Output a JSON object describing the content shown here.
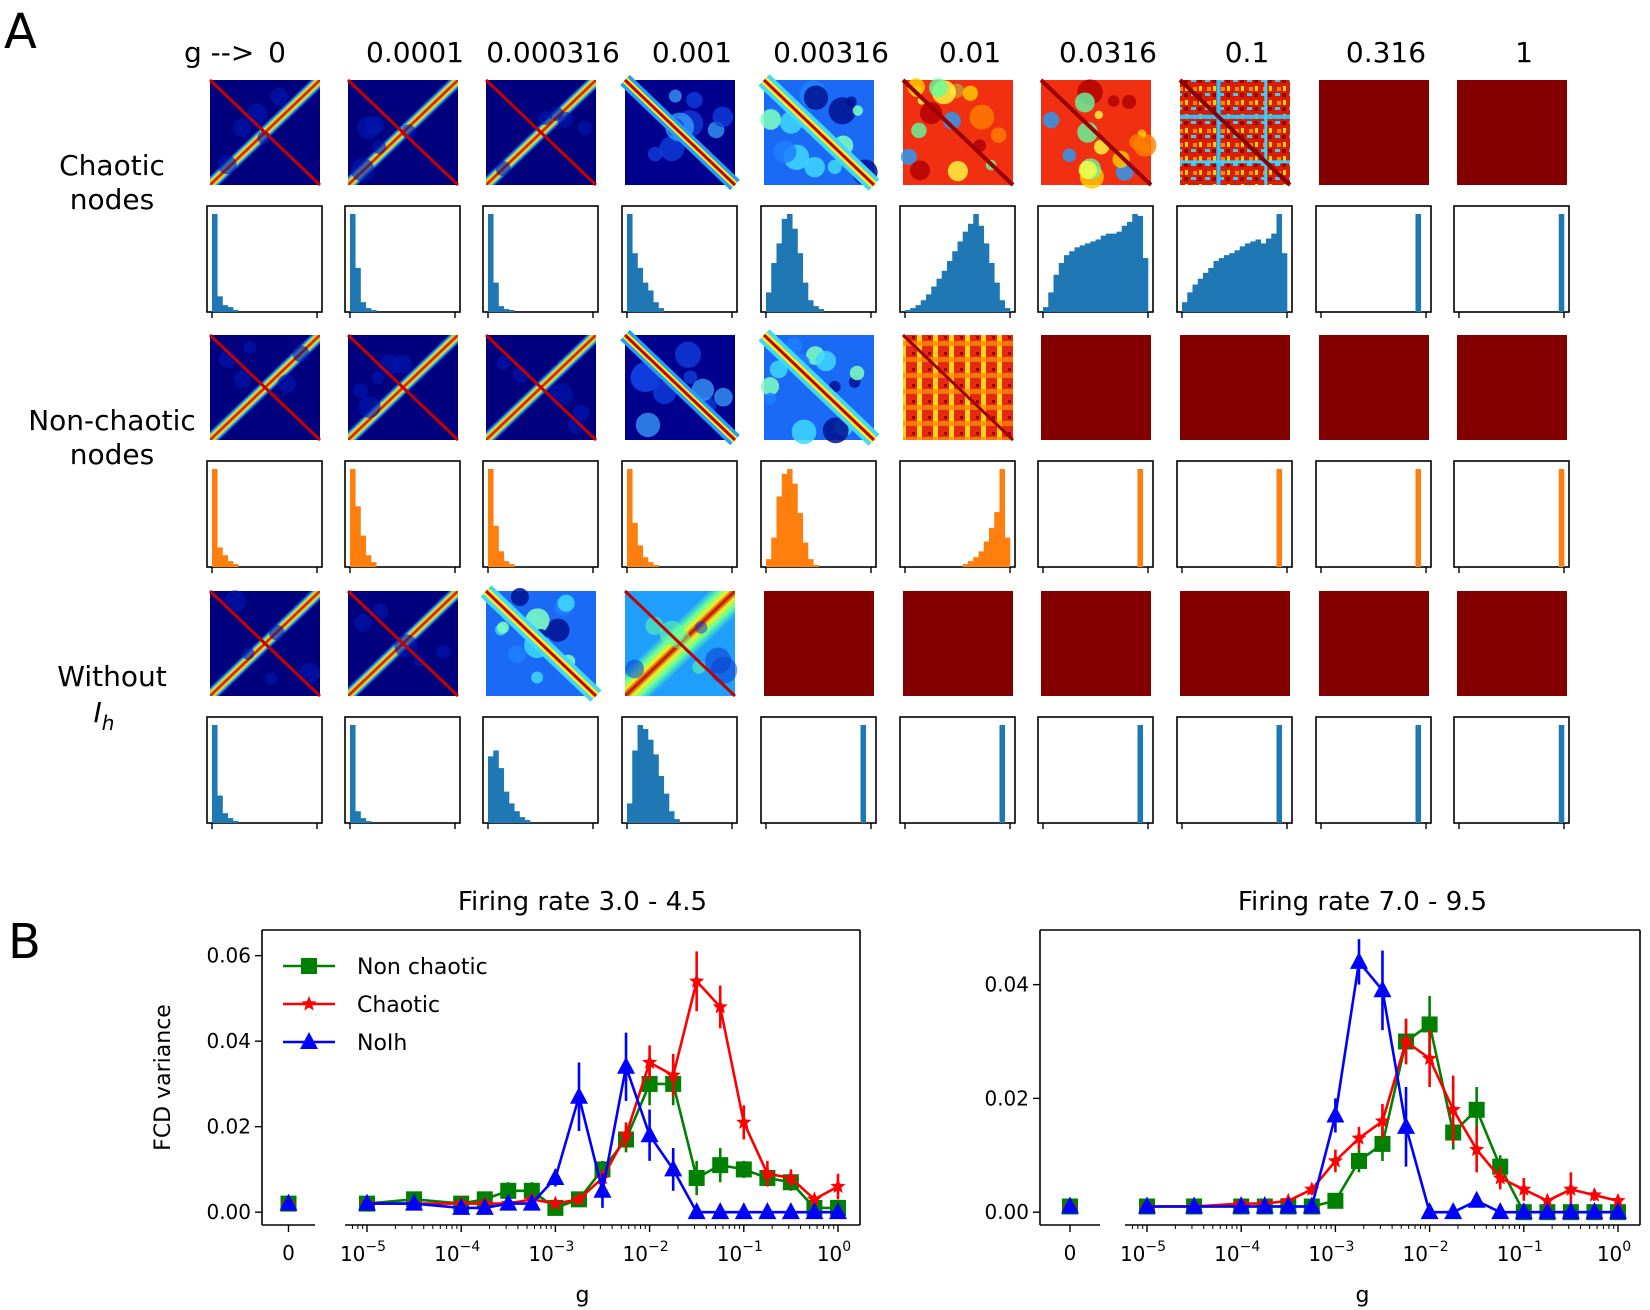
{
  "panelA": {
    "letter": "A",
    "g_prefix": "g -->",
    "g_values": [
      "0",
      "0.0001",
      "0.000316",
      "0.001",
      "0.00316",
      "0.01",
      "0.0316",
      "0.1",
      "0.316",
      "1"
    ],
    "rows": [
      {
        "label_lines": [
          "Chaotic",
          "nodes"
        ],
        "hist_color": "#1f77b4",
        "states": [
          "diag-sharp",
          "diag-sharp",
          "diag-sharp",
          "diag-blobs",
          "diag-cyan",
          "mixed-red",
          "mixed-red",
          "blocky",
          "uniform-red",
          "uniform-red"
        ],
        "histograms": [
          [
            1.0,
            0.16,
            0.07,
            0.05,
            0.02,
            0,
            0,
            0,
            0,
            0,
            0,
            0,
            0,
            0,
            0,
            0,
            0,
            0,
            0,
            0
          ],
          [
            1.0,
            0.45,
            0.1,
            0.04,
            0.02,
            0,
            0,
            0,
            0,
            0,
            0,
            0,
            0,
            0,
            0,
            0,
            0,
            0,
            0,
            0
          ],
          [
            1.0,
            0.3,
            0.06,
            0.03,
            0.02,
            0,
            0,
            0,
            0,
            0,
            0,
            0,
            0,
            0,
            0,
            0,
            0,
            0,
            0,
            0
          ],
          [
            1.0,
            0.6,
            0.45,
            0.3,
            0.22,
            0.1,
            0.04,
            0,
            0,
            0,
            0,
            0,
            0,
            0,
            0,
            0,
            0,
            0,
            0,
            0
          ],
          [
            0.2,
            0.5,
            0.7,
            0.95,
            1.0,
            0.85,
            0.6,
            0.3,
            0.12,
            0.06,
            0.03,
            0,
            0,
            0,
            0,
            0,
            0,
            0,
            0,
            0
          ],
          [
            0.02,
            0.04,
            0.07,
            0.12,
            0.18,
            0.26,
            0.34,
            0.42,
            0.52,
            0.62,
            0.72,
            0.82,
            0.9,
            1.0,
            0.88,
            0.7,
            0.5,
            0.3,
            0.12,
            0.04
          ],
          [
            0.05,
            0.2,
            0.38,
            0.5,
            0.58,
            0.62,
            0.66,
            0.68,
            0.7,
            0.72,
            0.74,
            0.78,
            0.8,
            0.8,
            0.82,
            0.88,
            0.92,
            1.0,
            0.98,
            0.55
          ],
          [
            0.1,
            0.2,
            0.28,
            0.34,
            0.4,
            0.45,
            0.52,
            0.55,
            0.58,
            0.6,
            0.63,
            0.67,
            0.7,
            0.72,
            0.74,
            0.7,
            0.75,
            0.8,
            1.0,
            0.6
          ],
          [
            0,
            0,
            0,
            0,
            0,
            0,
            0,
            0,
            0,
            0,
            0,
            0,
            0,
            0,
            0,
            0,
            0,
            0,
            1.0,
            0
          ],
          [
            0,
            0,
            0,
            0,
            0,
            0,
            0,
            0,
            0,
            0,
            0,
            0,
            0,
            0,
            0,
            0,
            0,
            0,
            0,
            1.0
          ]
        ]
      },
      {
        "label_lines": [
          "Non-chaotic",
          "nodes"
        ],
        "hist_color": "#ff7f0e",
        "states": [
          "diag-sharp",
          "diag-sharp",
          "diag-sharp",
          "diag-blobs",
          "diag-cyan",
          "grid-red",
          "uniform-red",
          "uniform-red",
          "uniform-red",
          "uniform-red"
        ],
        "histograms": [
          [
            1.0,
            0.2,
            0.12,
            0.06,
            0.03,
            0,
            0,
            0,
            0,
            0,
            0,
            0,
            0,
            0,
            0,
            0,
            0,
            0,
            0,
            0
          ],
          [
            1.0,
            0.62,
            0.32,
            0.12,
            0.05,
            0,
            0,
            0,
            0,
            0,
            0,
            0,
            0,
            0,
            0,
            0,
            0,
            0,
            0,
            0
          ],
          [
            1.0,
            0.42,
            0.16,
            0.06,
            0.03,
            0,
            0,
            0,
            0,
            0,
            0,
            0,
            0,
            0,
            0,
            0,
            0,
            0,
            0,
            0
          ],
          [
            1.0,
            0.45,
            0.22,
            0.1,
            0.05,
            0.02,
            0,
            0,
            0,
            0,
            0,
            0,
            0,
            0,
            0,
            0,
            0,
            0,
            0,
            0
          ],
          [
            0.08,
            0.3,
            0.72,
            0.95,
            1.0,
            0.85,
            0.55,
            0.25,
            0.08,
            0.02,
            0,
            0,
            0,
            0,
            0,
            0,
            0,
            0,
            0,
            0
          ],
          [
            0,
            0,
            0,
            0,
            0,
            0,
            0,
            0,
            0,
            0,
            0,
            0.03,
            0.06,
            0.1,
            0.16,
            0.26,
            0.4,
            0.56,
            1.0,
            0.3
          ],
          [
            0,
            0,
            0,
            0,
            0,
            0,
            0,
            0,
            0,
            0,
            0,
            0,
            0,
            0,
            0,
            0,
            0,
            0,
            1.0,
            0
          ],
          [
            0,
            0,
            0,
            0,
            0,
            0,
            0,
            0,
            0,
            0,
            0,
            0,
            0,
            0,
            0,
            0,
            0,
            0,
            1.0,
            0
          ],
          [
            0,
            0,
            0,
            0,
            0,
            0,
            0,
            0,
            0,
            0,
            0,
            0,
            0,
            0,
            0,
            0,
            0,
            0,
            1.0,
            0
          ],
          [
            0,
            0,
            0,
            0,
            0,
            0,
            0,
            0,
            0,
            0,
            0,
            0,
            0,
            0,
            0,
            0,
            0,
            0,
            0,
            1.0
          ]
        ]
      },
      {
        "label_lines": [
          "Without",
          "I",
          "h"
        ],
        "hist_color": "#1f77b4",
        "states": [
          "diag-sharp",
          "diag-sharp",
          "diag-cyan",
          "diag-wide",
          "uniform-red",
          "uniform-red",
          "uniform-red",
          "uniform-red",
          "uniform-red",
          "uniform-red"
        ],
        "histograms": [
          [
            1.0,
            0.28,
            0.1,
            0.05,
            0.02,
            0,
            0,
            0,
            0,
            0,
            0,
            0,
            0,
            0,
            0,
            0,
            0,
            0,
            0,
            0
          ],
          [
            1.0,
            0.12,
            0.05,
            0.02,
            0,
            0,
            0,
            0,
            0,
            0,
            0,
            0,
            0,
            0,
            0,
            0,
            0,
            0,
            0,
            0
          ],
          [
            0.68,
            0.74,
            0.56,
            0.32,
            0.2,
            0.12,
            0.06,
            0.03,
            0,
            0,
            0,
            0,
            0,
            0,
            0,
            0,
            0,
            0,
            0,
            0
          ],
          [
            0.2,
            0.74,
            1.0,
            0.96,
            0.85,
            0.7,
            0.48,
            0.3,
            0.12,
            0.04,
            0,
            0,
            0,
            0,
            0,
            0,
            0,
            0,
            0,
            0
          ],
          [
            0,
            0,
            0,
            0,
            0,
            0,
            0,
            0,
            0,
            0,
            0,
            0,
            0,
            0,
            0,
            0,
            0,
            0,
            1.0,
            0
          ],
          [
            0,
            0,
            0,
            0,
            0,
            0,
            0,
            0,
            0,
            0,
            0,
            0,
            0,
            0,
            0,
            0,
            0,
            0,
            1.0,
            0
          ],
          [
            0,
            0,
            0,
            0,
            0,
            0,
            0,
            0,
            0,
            0,
            0,
            0,
            0,
            0,
            0,
            0,
            0,
            0,
            1.0,
            0
          ],
          [
            0,
            0,
            0,
            0,
            0,
            0,
            0,
            0,
            0,
            0,
            0,
            0,
            0,
            0,
            0,
            0,
            0,
            0,
            1.0,
            0
          ],
          [
            0,
            0,
            0,
            0,
            0,
            0,
            0,
            0,
            0,
            0,
            0,
            0,
            0,
            0,
            0,
            0,
            0,
            0,
            1.0,
            0
          ],
          [
            0,
            0,
            0,
            0,
            0,
            0,
            0,
            0,
            0,
            0,
            0,
            0,
            0,
            0,
            0,
            0,
            0,
            0,
            0,
            1.0
          ]
        ]
      }
    ]
  },
  "panelB": {
    "letter": "B"
  },
  "chart_data": [
    {
      "type": "line",
      "title": "Firing rate 3.0 - 4.5",
      "xlabel": "g",
      "ylabel": "FCD variance",
      "xscale": "log (broken axis with separate g = 0 point)",
      "xlim": [
        1e-05,
        1
      ],
      "ylim": [
        0,
        0.066
      ],
      "ytick_labels": [
        "0.00",
        "0.02",
        "0.04",
        "0.06"
      ],
      "ytick_values": [
        0,
        0.02,
        0.04,
        0.06
      ],
      "zero_tick_label": "0",
      "xtick_labels": [
        {
          "base": "10",
          "exp": "−5"
        },
        {
          "base": "10",
          "exp": "−4"
        },
        {
          "base": "10",
          "exp": "−3"
        },
        {
          "base": "10",
          "exp": "−2"
        },
        {
          "base": "10",
          "exp": "−1"
        },
        {
          "base": "10",
          "exp": "0"
        }
      ],
      "legend_position": "top-left",
      "zero_point": 0.002,
      "x": [
        1e-05,
        3.16e-05,
        0.0001,
        0.000178,
        0.000316,
        0.000562,
        0.001,
        0.00178,
        0.00316,
        0.00562,
        0.01,
        0.0178,
        0.0316,
        0.0562,
        0.1,
        0.178,
        0.316,
        0.562,
        1
      ],
      "series": [
        {
          "name": "Non chaotic",
          "color": "#008000",
          "marker": "square",
          "values": [
            0.002,
            0.003,
            0.002,
            0.003,
            0.005,
            0.005,
            0.001,
            0.003,
            0.01,
            0.017,
            0.03,
            0.03,
            0.008,
            0.011,
            0.01,
            0.008,
            0.007,
            0.001,
            0.001
          ],
          "errors": [
            0.001,
            0.001,
            0.001,
            0.001,
            0.002,
            0.002,
            0.001,
            0.001,
            0.002,
            0.003,
            0.005,
            0.005,
            0.004,
            0.004,
            0.002,
            0.002,
            0.002,
            0.001,
            0.001
          ]
        },
        {
          "name": "Chaotic",
          "color": "#ff0000",
          "marker": "star",
          "values": [
            0.002,
            0.002,
            0.002,
            0.002,
            0.002,
            0.003,
            0.002,
            0.003,
            0.008,
            0.018,
            0.035,
            0.032,
            0.054,
            0.048,
            0.021,
            0.009,
            0.008,
            0.003,
            0.006
          ],
          "errors": [
            0.001,
            0.001,
            0.001,
            0.001,
            0.001,
            0.001,
            0.001,
            0.001,
            0.002,
            0.003,
            0.004,
            0.005,
            0.007,
            0.005,
            0.004,
            0.003,
            0.002,
            0.001,
            0.003
          ]
        },
        {
          "name": "NoIh",
          "color": "#0000ff",
          "marker": "triangle",
          "values": [
            0.002,
            0.002,
            0.001,
            0.001,
            0.002,
            0.002,
            0.008,
            0.027,
            0.005,
            0.034,
            0.018,
            0.01,
            0.0,
            0.0,
            0.0,
            0.0,
            0.0,
            0.0,
            0.0
          ],
          "errors": [
            0.001,
            0.001,
            0.001,
            0.001,
            0.001,
            0.001,
            0.002,
            0.008,
            0.004,
            0.008,
            0.006,
            0.005,
            0.0,
            0.0,
            0.0,
            0.0,
            0.0,
            0.0,
            0.0
          ]
        }
      ]
    },
    {
      "type": "line",
      "title": "Firing rate 7.0 - 9.5",
      "xlabel": "g",
      "ylabel": "",
      "xscale": "log (broken axis with separate g = 0 point)",
      "xlim": [
        1e-05,
        1
      ],
      "ylim": [
        0,
        0.0496
      ],
      "ytick_labels": [
        "0.00",
        "0.02",
        "0.04"
      ],
      "ytick_values": [
        0,
        0.02,
        0.04
      ],
      "zero_tick_label": "0",
      "xtick_labels": [
        {
          "base": "10",
          "exp": "−5"
        },
        {
          "base": "10",
          "exp": "−4"
        },
        {
          "base": "10",
          "exp": "−3"
        },
        {
          "base": "10",
          "exp": "−2"
        },
        {
          "base": "10",
          "exp": "−1"
        },
        {
          "base": "10",
          "exp": "0"
        }
      ],
      "legend_position": "none",
      "zero_point": 0.001,
      "x": [
        1e-05,
        3.16e-05,
        0.0001,
        0.000178,
        0.000316,
        0.000562,
        0.001,
        0.00178,
        0.00316,
        0.00562,
        0.01,
        0.0178,
        0.0316,
        0.0562,
        0.1,
        0.178,
        0.316,
        0.562,
        1
      ],
      "series": [
        {
          "name": "Non chaotic",
          "color": "#008000",
          "marker": "square",
          "values": [
            0.001,
            0.001,
            0.001,
            0.001,
            0.001,
            0.001,
            0.002,
            0.009,
            0.012,
            0.03,
            0.033,
            0.014,
            0.018,
            0.008,
            0.0,
            0.0,
            0.0,
            0.0,
            0.0
          ],
          "errors": [
            0.0005,
            0.0005,
            0.0005,
            0.0005,
            0.0005,
            0.0005,
            0.001,
            0.002,
            0.003,
            0.004,
            0.005,
            0.003,
            0.004,
            0.002,
            0.0,
            0.0,
            0.0,
            0.0,
            0.0
          ]
        },
        {
          "name": "Chaotic",
          "color": "#ff0000",
          "marker": "star",
          "values": [
            0.001,
            0.001,
            0.0015,
            0.0015,
            0.002,
            0.004,
            0.009,
            0.013,
            0.016,
            0.03,
            0.027,
            0.018,
            0.011,
            0.006,
            0.004,
            0.002,
            0.004,
            0.003,
            0.002
          ],
          "errors": [
            0.0005,
            0.0005,
            0.0005,
            0.0005,
            0.0005,
            0.001,
            0.002,
            0.002,
            0.003,
            0.004,
            0.005,
            0.006,
            0.004,
            0.002,
            0.002,
            0.001,
            0.003,
            0.001,
            0.001
          ]
        },
        {
          "name": "NoIh",
          "color": "#0000ff",
          "marker": "triangle",
          "values": [
            0.001,
            0.001,
            0.001,
            0.001,
            0.001,
            0.001,
            0.017,
            0.044,
            0.039,
            0.015,
            0.0,
            0.0,
            0.002,
            0.0,
            0.0,
            0.0,
            0.0,
            0.0,
            0.0
          ],
          "errors": [
            0.0005,
            0.0005,
            0.0005,
            0.0005,
            0.0005,
            0.0005,
            0.003,
            0.004,
            0.007,
            0.007,
            0.0,
            0.0,
            0.001,
            0.0,
            0.0,
            0.0,
            0.0,
            0.0,
            0.0
          ]
        }
      ]
    }
  ]
}
